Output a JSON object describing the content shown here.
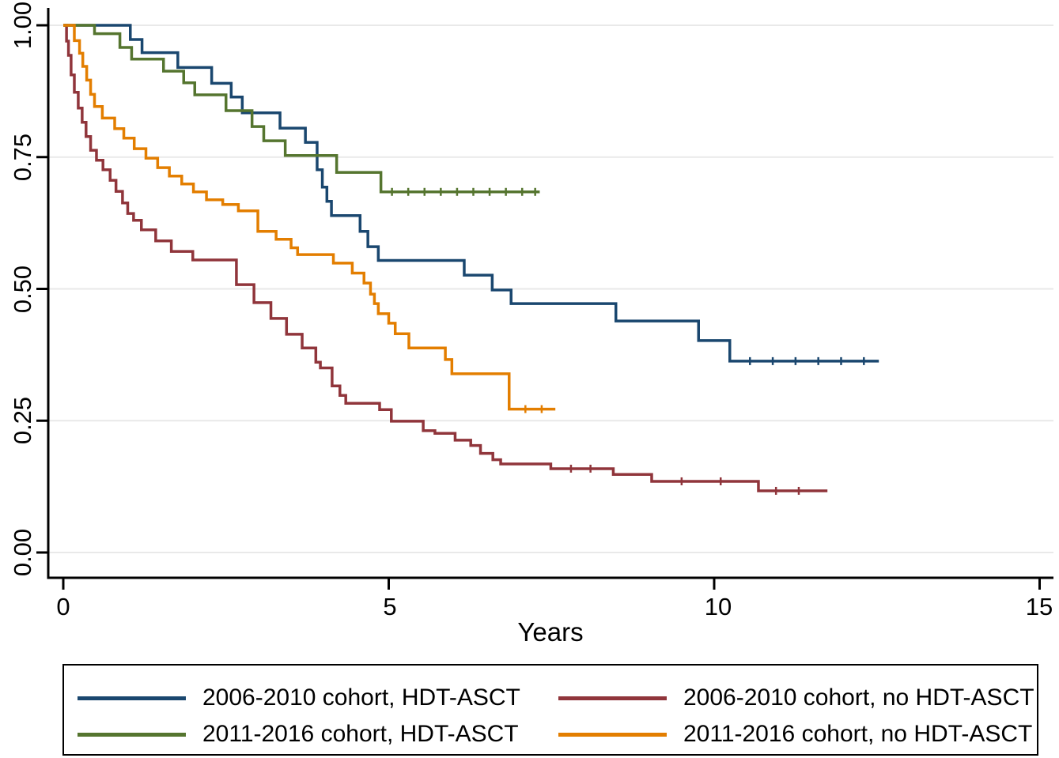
{
  "figure": {
    "kind": "kaplan-meier-survival-plot",
    "background": "#ffffff"
  },
  "chart_data": {
    "type": "line",
    "subtype": "kaplan-meier-step",
    "title": "",
    "xlabel": "Years",
    "ylabel": "",
    "xlim": [
      0,
      15
    ],
    "ylim": [
      0.0,
      1.0
    ],
    "grid": "horizontal",
    "grid_color": "#e9e9e9",
    "axis_color": "#000000",
    "legend_position": "bottom",
    "x_ticks": [
      0,
      5,
      10,
      15
    ],
    "x_tick_labels": [
      "0",
      "5",
      "10",
      "15"
    ],
    "y_ticks": [
      0.0,
      0.25,
      0.5,
      0.75,
      1.0
    ],
    "y_tick_labels": [
      "0.00",
      "0.25",
      "0.50",
      "0.75",
      "1.00"
    ],
    "series": [
      {
        "name": "2006-2010 cohort, HDT-ASCT",
        "color": "#1a476f",
        "end_time": 12.53,
        "points": [
          [
            0,
            1.0
          ],
          [
            1.03,
            0.973
          ],
          [
            1.21,
            0.948
          ],
          [
            1.76,
            0.92
          ],
          [
            2.28,
            0.89
          ],
          [
            2.58,
            0.864
          ],
          [
            2.75,
            0.834
          ],
          [
            3.33,
            0.805
          ],
          [
            3.72,
            0.778
          ],
          [
            3.9,
            0.726
          ],
          [
            3.98,
            0.693
          ],
          [
            4.05,
            0.666
          ],
          [
            4.12,
            0.639
          ],
          [
            4.56,
            0.609
          ],
          [
            4.68,
            0.58
          ],
          [
            4.84,
            0.554
          ],
          [
            6.16,
            0.526
          ],
          [
            6.59,
            0.498
          ],
          [
            6.88,
            0.472
          ],
          [
            8.49,
            0.439
          ],
          [
            9.76,
            0.402
          ],
          [
            10.24,
            0.363
          ]
        ],
        "censor_ticks": [
          [
            10.55,
            0.363
          ],
          [
            10.9,
            0.363
          ],
          [
            11.25,
            0.363
          ],
          [
            11.6,
            0.363
          ],
          [
            11.95,
            0.363
          ],
          [
            12.3,
            0.363
          ]
        ]
      },
      {
        "name": "2006-2010 cohort, no HDT-ASCT",
        "color": "#90353b",
        "end_time": 11.74,
        "points": [
          [
            0,
            1.0
          ],
          [
            0.05,
            0.97
          ],
          [
            0.08,
            0.943
          ],
          [
            0.12,
            0.906
          ],
          [
            0.17,
            0.873
          ],
          [
            0.23,
            0.843
          ],
          [
            0.29,
            0.816
          ],
          [
            0.35,
            0.789
          ],
          [
            0.42,
            0.763
          ],
          [
            0.51,
            0.744
          ],
          [
            0.61,
            0.726
          ],
          [
            0.72,
            0.706
          ],
          [
            0.81,
            0.685
          ],
          [
            0.91,
            0.663
          ],
          [
            0.99,
            0.643
          ],
          [
            1.08,
            0.63
          ],
          [
            1.2,
            0.612
          ],
          [
            1.42,
            0.591
          ],
          [
            1.66,
            0.571
          ],
          [
            1.99,
            0.555
          ],
          [
            2.66,
            0.508
          ],
          [
            2.93,
            0.474
          ],
          [
            3.19,
            0.444
          ],
          [
            3.43,
            0.414
          ],
          [
            3.67,
            0.388
          ],
          [
            3.88,
            0.361
          ],
          [
            3.95,
            0.35
          ],
          [
            4.13,
            0.316
          ],
          [
            4.25,
            0.298
          ],
          [
            4.34,
            0.283
          ],
          [
            4.86,
            0.271
          ],
          [
            5.04,
            0.249
          ],
          [
            5.53,
            0.231
          ],
          [
            5.71,
            0.226
          ],
          [
            6.02,
            0.213
          ],
          [
            6.26,
            0.203
          ],
          [
            6.41,
            0.188
          ],
          [
            6.6,
            0.176
          ],
          [
            6.72,
            0.168
          ],
          [
            7.49,
            0.159
          ],
          [
            8.45,
            0.148
          ],
          [
            9.04,
            0.135
          ],
          [
            10.68,
            0.117
          ]
        ],
        "censor_ticks": [
          [
            7.8,
            0.159
          ],
          [
            8.1,
            0.159
          ],
          [
            9.5,
            0.135
          ],
          [
            10.1,
            0.135
          ],
          [
            10.95,
            0.117
          ],
          [
            11.3,
            0.117
          ]
        ]
      },
      {
        "name": "2011-2016 cohort, HDT-ASCT",
        "color": "#55752f",
        "end_time": 7.32,
        "points": [
          [
            0,
            1.0
          ],
          [
            0.48,
            0.984
          ],
          [
            0.87,
            0.958
          ],
          [
            1.05,
            0.936
          ],
          [
            1.54,
            0.913
          ],
          [
            1.85,
            0.891
          ],
          [
            2.02,
            0.868
          ],
          [
            2.5,
            0.838
          ],
          [
            2.9,
            0.808
          ],
          [
            3.08,
            0.781
          ],
          [
            3.41,
            0.753
          ],
          [
            4.2,
            0.721
          ],
          [
            4.88,
            0.684
          ]
        ],
        "censor_ticks": [
          [
            5.05,
            0.684
          ],
          [
            5.3,
            0.684
          ],
          [
            5.55,
            0.684
          ],
          [
            5.8,
            0.684
          ],
          [
            6.05,
            0.684
          ],
          [
            6.3,
            0.684
          ],
          [
            6.55,
            0.684
          ],
          [
            6.8,
            0.684
          ],
          [
            7.05,
            0.684
          ],
          [
            7.25,
            0.684
          ]
        ]
      },
      {
        "name": "2011-2016 cohort, no HDT-ASCT",
        "color": "#e37e00",
        "end_time": 7.56,
        "points": [
          [
            0,
            1.0
          ],
          [
            0.17,
            0.971
          ],
          [
            0.25,
            0.947
          ],
          [
            0.3,
            0.922
          ],
          [
            0.36,
            0.896
          ],
          [
            0.42,
            0.869
          ],
          [
            0.48,
            0.846
          ],
          [
            0.6,
            0.824
          ],
          [
            0.79,
            0.804
          ],
          [
            0.93,
            0.786
          ],
          [
            1.09,
            0.766
          ],
          [
            1.27,
            0.748
          ],
          [
            1.45,
            0.73
          ],
          [
            1.63,
            0.714
          ],
          [
            1.82,
            0.699
          ],
          [
            2.0,
            0.684
          ],
          [
            2.2,
            0.669
          ],
          [
            2.45,
            0.66
          ],
          [
            2.69,
            0.648
          ],
          [
            2.99,
            0.609
          ],
          [
            3.27,
            0.594
          ],
          [
            3.5,
            0.578
          ],
          [
            3.6,
            0.565
          ],
          [
            4.15,
            0.549
          ],
          [
            4.44,
            0.53
          ],
          [
            4.62,
            0.511
          ],
          [
            4.72,
            0.49
          ],
          [
            4.78,
            0.472
          ],
          [
            4.84,
            0.453
          ],
          [
            5.0,
            0.435
          ],
          [
            5.1,
            0.415
          ],
          [
            5.31,
            0.388
          ],
          [
            5.87,
            0.366
          ],
          [
            5.97,
            0.339
          ],
          [
            6.85,
            0.272
          ]
        ],
        "censor_ticks": [
          [
            7.1,
            0.272
          ],
          [
            7.35,
            0.272
          ]
        ]
      }
    ]
  },
  "legend": {
    "rows": 2,
    "columns": 2,
    "cell_order_series_index": [
      0,
      1,
      2,
      3
    ]
  }
}
